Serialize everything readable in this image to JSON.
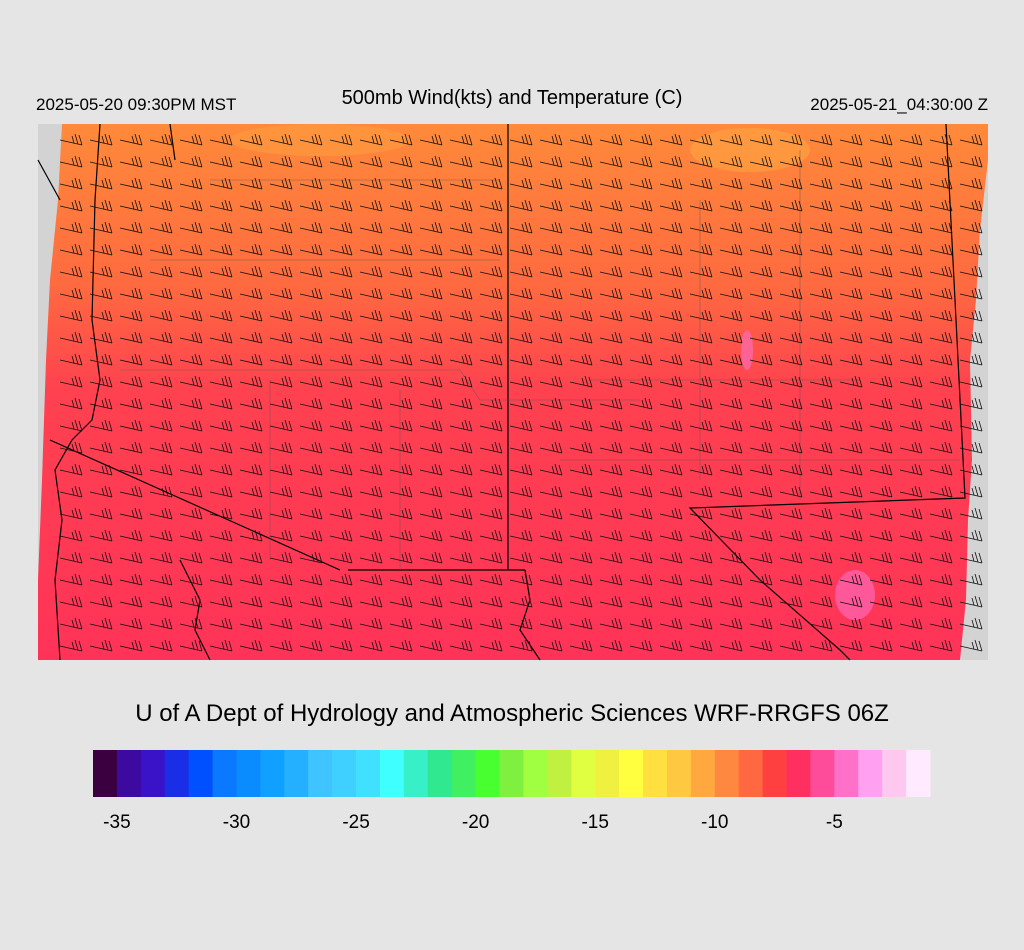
{
  "header": {
    "valid_local": "2025-05-20 09:30PM MST",
    "title": "500mb Wind(kts) and Temperature (C)",
    "valid_utc": "2025-05-21_04:30:00 Z"
  },
  "credit": "U of A Dept of Hydrology and Atmospheric Sciences WRF-RRGFS 06Z",
  "colorbar": {
    "lim": [
      -36,
      -1
    ],
    "ticks": [
      -35,
      -30,
      -25,
      -20,
      -15,
      -10,
      -5
    ],
    "colors": [
      "#3a0040",
      "#3d0aa0",
      "#3a12c8",
      "#1a2ee8",
      "#0050ff",
      "#0a78ff",
      "#0a8cff",
      "#10a0ff",
      "#24b0ff",
      "#40c4ff",
      "#40d0ff",
      "#40e0ff",
      "#40ffff",
      "#38f0c8",
      "#30e890",
      "#40f060",
      "#48ff30",
      "#80f040",
      "#a0ff40",
      "#c0f040",
      "#e0ff40",
      "#f0f040",
      "#ffff40",
      "#ffe040",
      "#ffc840",
      "#ffa840",
      "#ff8840",
      "#ff6840",
      "#ff4040",
      "#ff3060",
      "#ff4c9a",
      "#ff70c8",
      "#ffa0f0",
      "#ffc8f0",
      "#ffeaff"
    ]
  }
}
